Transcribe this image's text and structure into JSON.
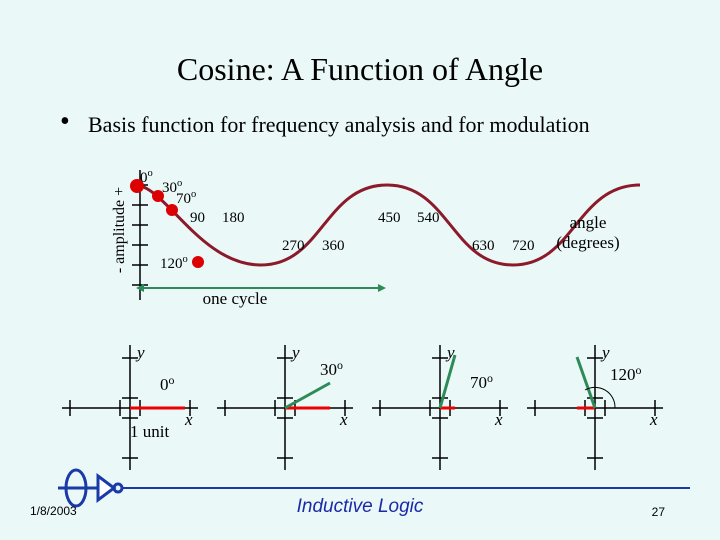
{
  "header": {
    "title": "Cosine: A Function of Angle"
  },
  "bullet": "Basis function for frequency analysis and for modulation",
  "plot": {
    "y_label": "- amplitude +",
    "labels": [
      {
        "text": "0",
        "sup": "o"
      },
      {
        "text": "30",
        "sup": "o"
      },
      {
        "text": "70",
        "sup": "o"
      },
      {
        "text": "90"
      },
      {
        "text": "180"
      },
      {
        "text": "270"
      },
      {
        "text": "360"
      },
      {
        "text": "450"
      },
      {
        "text": "540"
      },
      {
        "text": "630"
      },
      {
        "text": "720"
      },
      {
        "text": "120",
        "sup": "o"
      }
    ],
    "angle_label": [
      "angle",
      "(degrees)"
    ],
    "cycle_label": "one cycle"
  },
  "panels": [
    {
      "y": "y",
      "angle": {
        "text": "0",
        "sup": "o"
      },
      "unit": "1 unit",
      "x": "x"
    },
    {
      "y": "y",
      "angle": {
        "text": "30",
        "sup": "o"
      },
      "x": "x"
    },
    {
      "y": "y",
      "angle": {
        "text": "70",
        "sup": "o"
      },
      "x": "x"
    },
    {
      "y": "y",
      "angle": {
        "text": "120",
        "sup": "o"
      },
      "x": "x"
    }
  ],
  "footer": {
    "date": "1/8/2003",
    "title": "Inductive Logic",
    "page": "27"
  }
}
